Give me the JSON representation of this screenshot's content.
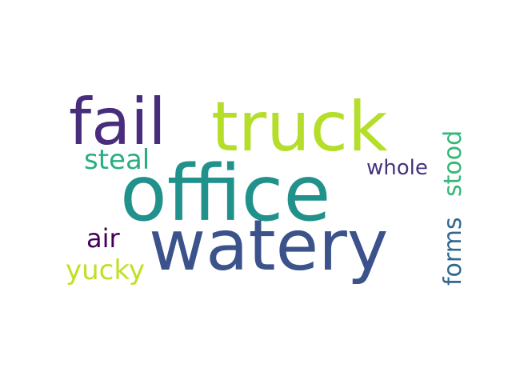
{
  "words": [
    {
      "id": "office",
      "text": "office",
      "color": "#21918c"
    },
    {
      "id": "truck",
      "text": "truck",
      "color": "#b5de2b"
    },
    {
      "id": "watery",
      "text": "watery",
      "color": "#3b528b"
    },
    {
      "id": "fail",
      "text": "fail",
      "color": "#472d7b"
    },
    {
      "id": "steal",
      "text": "steal",
      "color": "#29af7f"
    },
    {
      "id": "whole",
      "text": "whole",
      "color": "#46337e"
    },
    {
      "id": "air",
      "text": "air",
      "color": "#440154"
    },
    {
      "id": "yucky",
      "text": "yucky",
      "color": "#c2df23"
    },
    {
      "id": "forms",
      "text": "forms",
      "color": "#31688e"
    },
    {
      "id": "stood",
      "text": "stood",
      "color": "#35b779"
    }
  ]
}
